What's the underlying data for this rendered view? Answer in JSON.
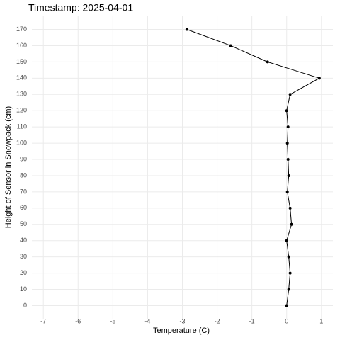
{
  "chart_data": {
    "type": "line",
    "title": "Timestamp: 2025-04-01",
    "x_label": "Temperature (C)",
    "y_label": "Height of Sensor in Snowpack (cm)",
    "series": [
      {
        "color": "#000000",
        "x": [
          0.0,
          0.06,
          0.1,
          0.06,
          0.0,
          0.14,
          0.1,
          0.02,
          0.06,
          0.04,
          0.02,
          0.04,
          0.0,
          0.1,
          0.94,
          -0.55,
          -1.61,
          -2.87
        ],
        "values": [
          0,
          10,
          20,
          30,
          40,
          50,
          60,
          70,
          80,
          90,
          100,
          110,
          120,
          130,
          140,
          150,
          160,
          170
        ]
      }
    ],
    "xlim": [
      -7.33,
      1.33
    ],
    "xticks": [
      -7,
      -6,
      -5,
      -4,
      -3,
      -2,
      -1,
      0,
      1
    ],
    "ylim": [
      -8.5,
      178.5
    ],
    "yticks": [
      0,
      10,
      20,
      30,
      40,
      50,
      60,
      70,
      80,
      90,
      100,
      110,
      120,
      130,
      140,
      150,
      160,
      170
    ],
    "grid": true
  }
}
